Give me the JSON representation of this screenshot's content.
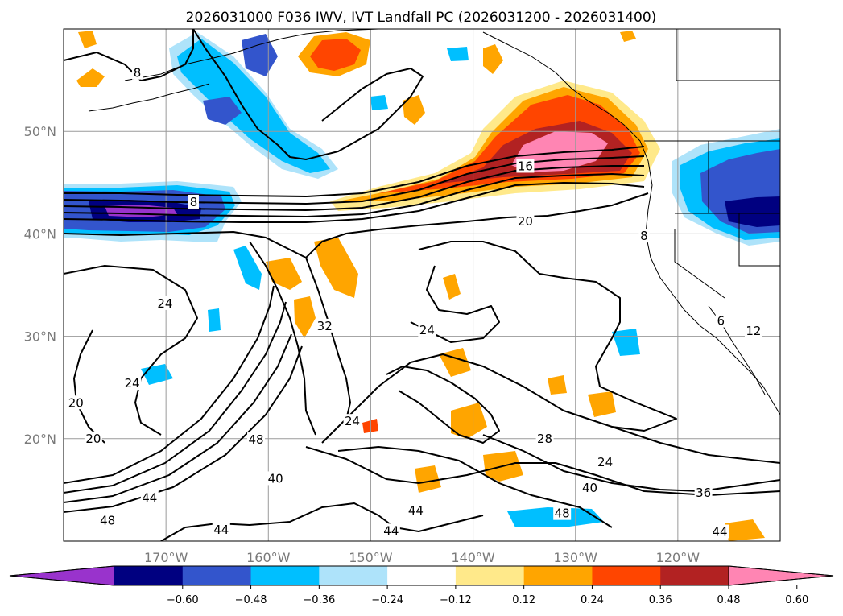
{
  "chart_data": {
    "type": "contour-map",
    "title": "2026031000 F036 IWV, IVT Landfall PC (2026031200 - 2026031400)",
    "lon_range": [
      -180,
      -110
    ],
    "lat_range": [
      10,
      60
    ],
    "lat_ticks": [
      {
        "value": 20,
        "label": "20°N"
      },
      {
        "value": 30,
        "label": "30°N"
      },
      {
        "value": 40,
        "label": "40°N"
      },
      {
        "value": 50,
        "label": "50°N"
      }
    ],
    "lon_ticks": [
      {
        "value": -170,
        "label": "170°W"
      },
      {
        "value": -160,
        "label": "160°W"
      },
      {
        "value": -150,
        "label": "150°W"
      },
      {
        "value": -140,
        "label": "140°W"
      },
      {
        "value": -130,
        "label": "130°W"
      },
      {
        "value": -120,
        "label": "120°W"
      }
    ],
    "colorbar": {
      "levels": [
        -0.6,
        -0.48,
        -0.36,
        -0.24,
        -0.12,
        0.12,
        0.24,
        0.36,
        0.48,
        0.6
      ],
      "tick_labels": [
        "−0.60",
        "−0.48",
        "−0.36",
        "−0.24",
        "−0.12",
        "0.12",
        "0.24",
        "0.36",
        "0.48",
        "0.60"
      ],
      "colors": [
        "#9933cc",
        "#000080",
        "#3355cc",
        "#00bfff",
        "#aee3fa",
        "#ffffff",
        "#ffe98a",
        "#ffa500",
        "#ff4500",
        "#b22222",
        "#ff85b3"
      ]
    },
    "contour_labels": [
      {
        "text": "8",
        "lon": -172.8,
        "lat": 55.7
      },
      {
        "text": "16",
        "lon": -134.9,
        "lat": 46.6
      },
      {
        "text": "8",
        "lon": -167.3,
        "lat": 43.1
      },
      {
        "text": "20",
        "lon": -134.9,
        "lat": 41.2
      },
      {
        "text": "8",
        "lon": -123.3,
        "lat": 39.8
      },
      {
        "text": "24",
        "lon": -170.1,
        "lat": 33.2
      },
      {
        "text": "32",
        "lon": -154.5,
        "lat": 31.0
      },
      {
        "text": "24",
        "lon": -144.5,
        "lat": 30.6
      },
      {
        "text": "6",
        "lon": -115.8,
        "lat": 31.5
      },
      {
        "text": "12",
        "lon": -112.6,
        "lat": 30.5
      },
      {
        "text": "24",
        "lon": -173.3,
        "lat": 25.4
      },
      {
        "text": "20",
        "lon": -178.8,
        "lat": 23.5
      },
      {
        "text": "24",
        "lon": -151.8,
        "lat": 21.7
      },
      {
        "text": "20",
        "lon": -177.1,
        "lat": 20.0
      },
      {
        "text": "48",
        "lon": -161.2,
        "lat": 19.9
      },
      {
        "text": "28",
        "lon": -133.0,
        "lat": 20.0
      },
      {
        "text": "24",
        "lon": -127.1,
        "lat": 17.7
      },
      {
        "text": "40",
        "lon": -159.3,
        "lat": 16.1
      },
      {
        "text": "40",
        "lon": -128.6,
        "lat": 15.2
      },
      {
        "text": "36",
        "lon": -117.5,
        "lat": 14.7
      },
      {
        "text": "44",
        "lon": -171.6,
        "lat": 14.2
      },
      {
        "text": "44",
        "lon": -145.6,
        "lat": 13.0
      },
      {
        "text": "48",
        "lon": -131.3,
        "lat": 12.7
      },
      {
        "text": "48",
        "lon": -175.7,
        "lat": 12.0
      },
      {
        "text": "44",
        "lon": -164.6,
        "lat": 11.1
      },
      {
        "text": "44",
        "lon": -148.0,
        "lat": 11.0
      },
      {
        "text": "44",
        "lon": -115.9,
        "lat": 10.9
      }
    ]
  }
}
